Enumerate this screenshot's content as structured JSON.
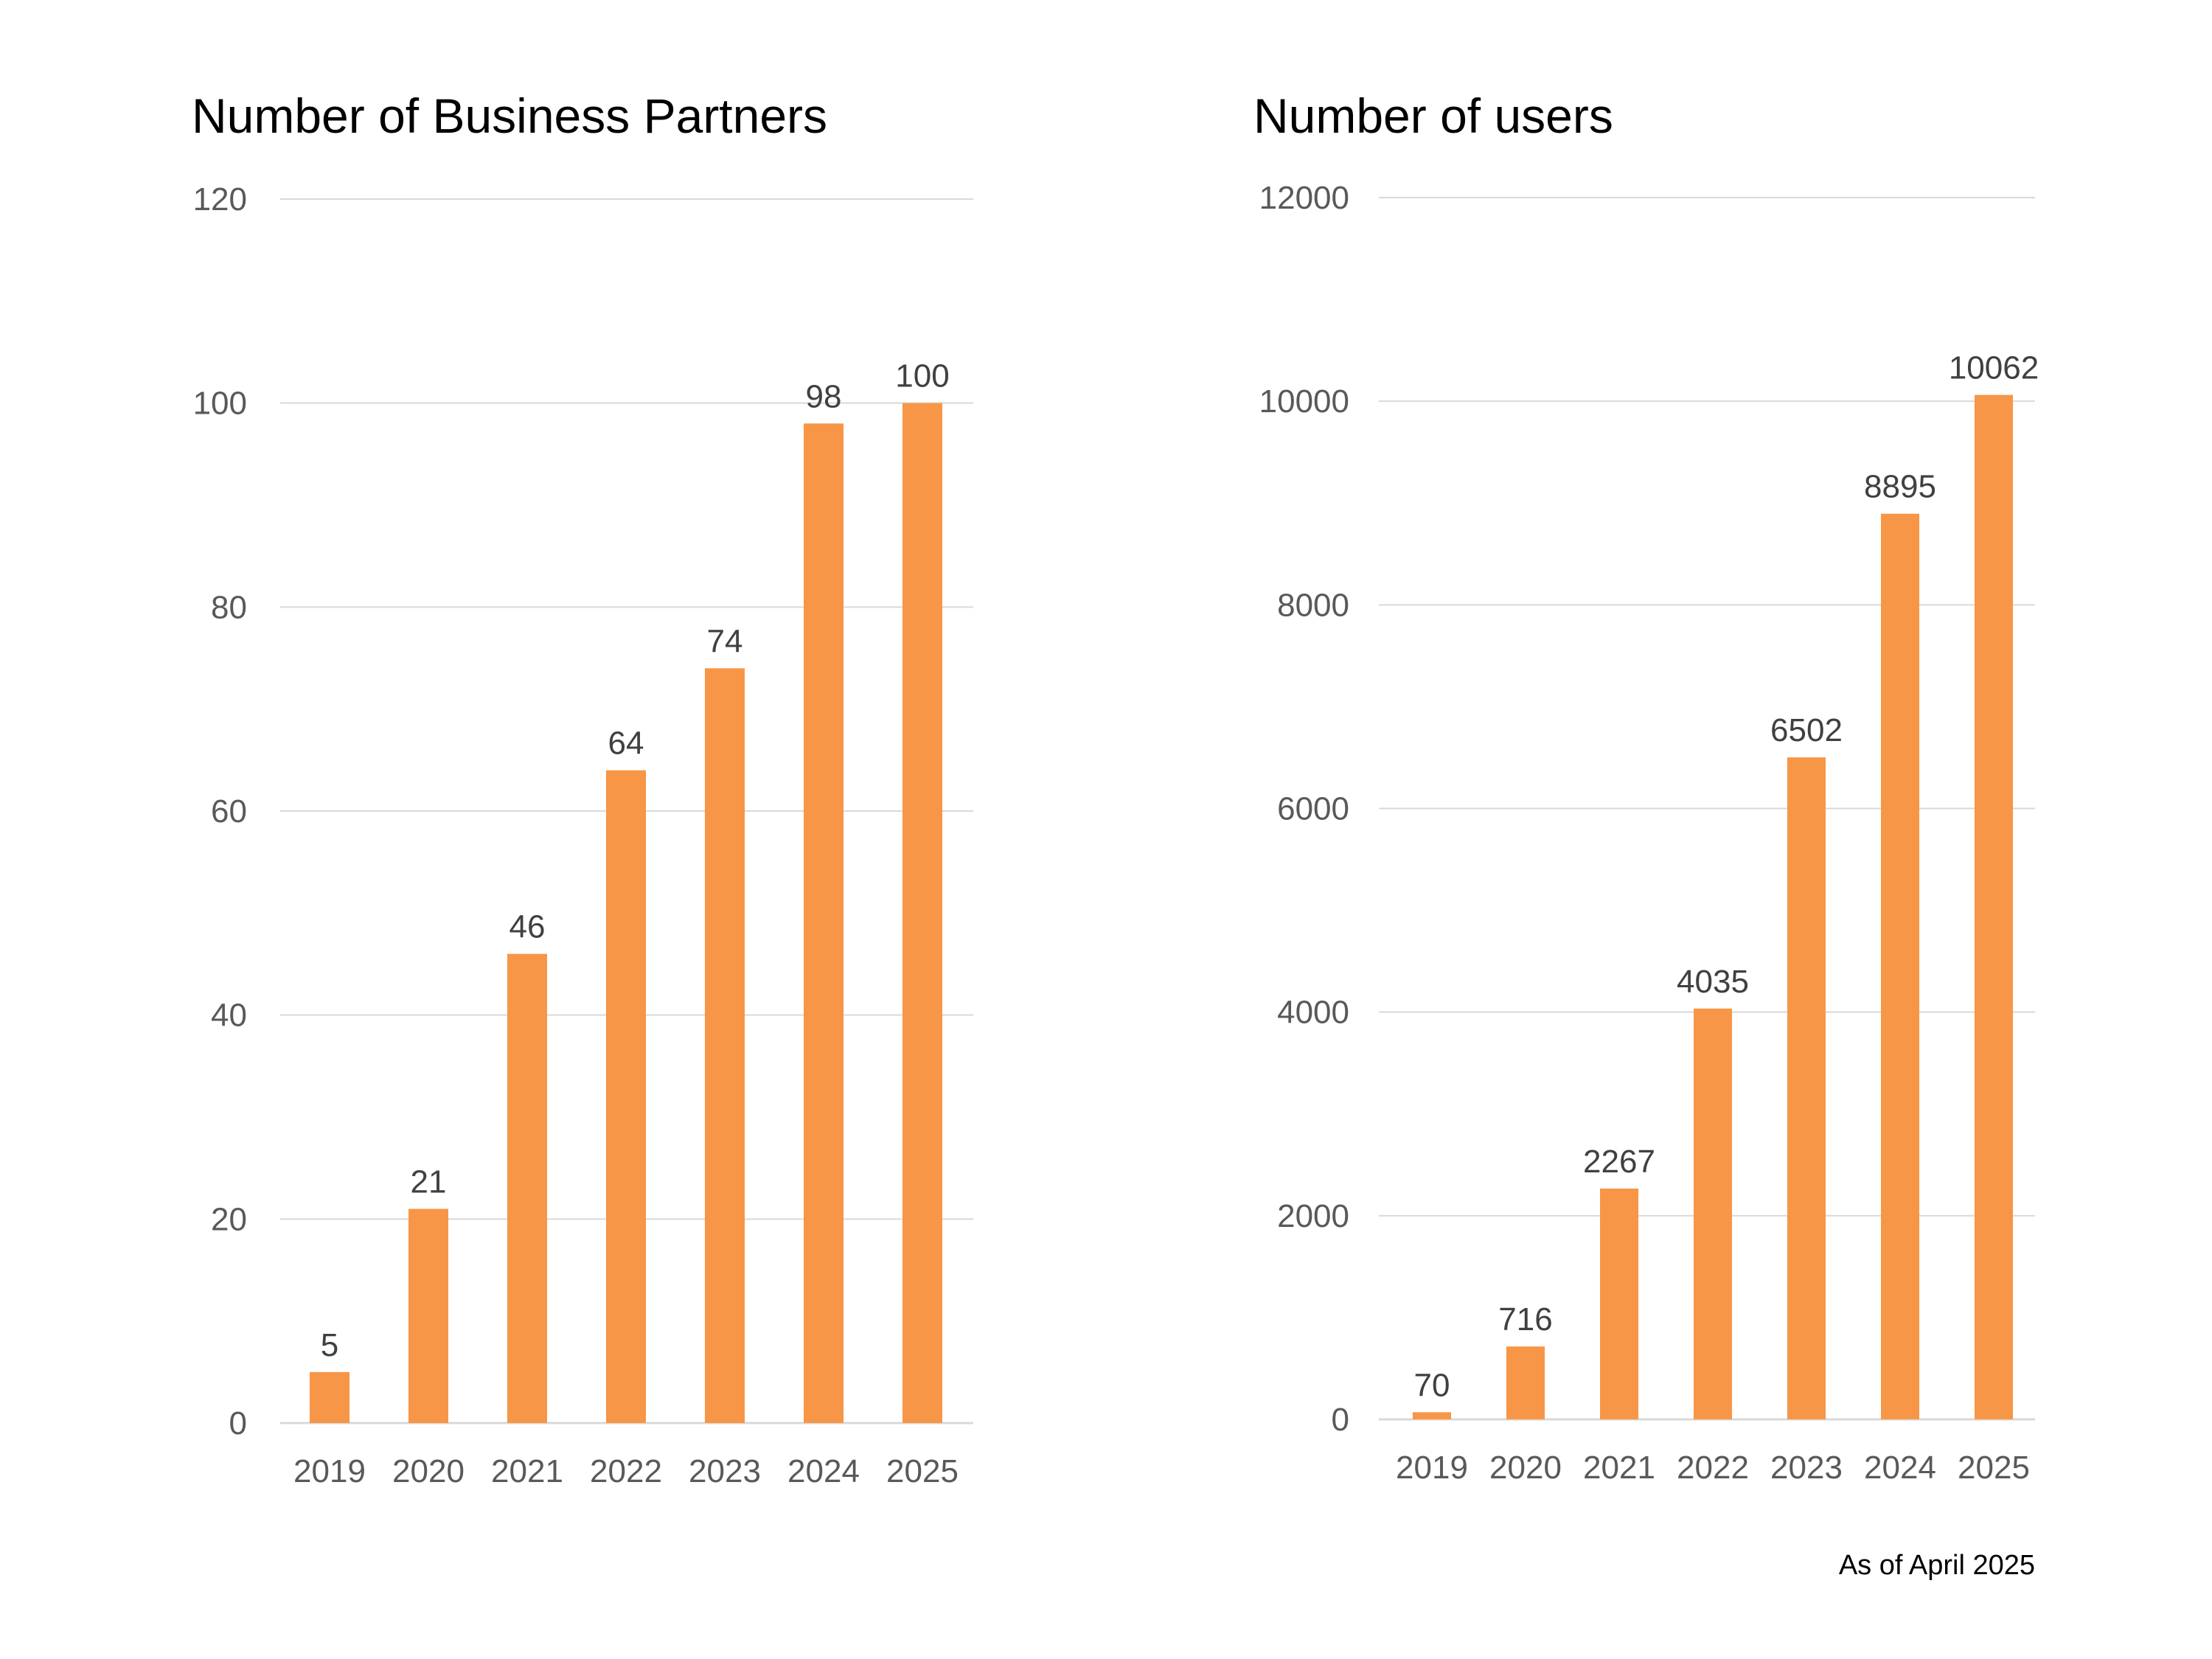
{
  "colors": {
    "bar": "#f79646",
    "gridline": "#d9d9d9",
    "tick_text": "#595959",
    "data_label_text": "#404040",
    "title_text": "#000000",
    "background": "#ffffff"
  },
  "footnote": "As of April 2025",
  "chart_data": [
    {
      "type": "bar",
      "title": "Number of Business Partners",
      "xlabel": "",
      "ylabel": "",
      "categories": [
        "2019",
        "2020",
        "2021",
        "2022",
        "2023",
        "2024",
        "2025"
      ],
      "values": [
        5,
        21,
        46,
        64,
        74,
        98,
        100
      ],
      "data_labels": [
        "5",
        "21",
        "46",
        "64",
        "74",
        "98",
        "100"
      ],
      "ylim": [
        0,
        120
      ],
      "yticks": [
        0,
        20,
        40,
        60,
        80,
        100,
        120
      ],
      "ytick_labels": [
        "0",
        "20",
        "40",
        "60",
        "80",
        "100",
        "120"
      ],
      "grid": true,
      "legend": "none"
    },
    {
      "type": "bar",
      "title": "Number of users",
      "xlabel": "",
      "ylabel": "",
      "categories": [
        "2019",
        "2020",
        "2021",
        "2022",
        "2023",
        "2024",
        "2025"
      ],
      "values": [
        70,
        716,
        2267,
        4035,
        6502,
        8895,
        10062
      ],
      "data_labels": [
        "70",
        "716",
        "2267",
        "4035",
        "6502",
        "8895",
        "10062"
      ],
      "ylim": [
        0,
        12000
      ],
      "yticks": [
        0,
        2000,
        4000,
        6000,
        8000,
        10000,
        12000
      ],
      "ytick_labels": [
        "0",
        "2000",
        "4000",
        "6000",
        "8000",
        "10000",
        "12000"
      ],
      "grid": true,
      "legend": "none"
    }
  ]
}
